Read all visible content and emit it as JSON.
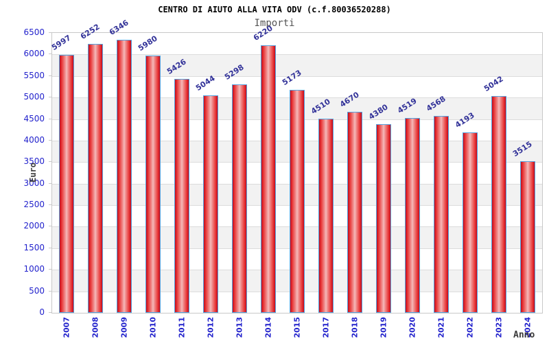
{
  "chart_data": {
    "type": "bar",
    "title": "CENTRO DI AIUTO ALLA VITA ODV (c.f.80036520288)",
    "subtitle": "Importi",
    "xlabel": "Anno",
    "ylabel": "Euro",
    "ylim": [
      0,
      6500
    ],
    "ytick_step": 500,
    "grid": "horizontal banded",
    "legend_position": "none",
    "categories": [
      "2007",
      "2008",
      "2009",
      "2010",
      "2011",
      "2012",
      "2013",
      "2014",
      "2015",
      "2017",
      "2018",
      "2019",
      "2020",
      "2021",
      "2022",
      "2023",
      "2024"
    ],
    "values": [
      5997,
      6252,
      6346,
      5980,
      5426,
      5044,
      5298,
      6220,
      5173,
      4510,
      4670,
      4380,
      4519,
      4568,
      4193,
      5042,
      3515
    ],
    "colors": {
      "bar_fill_edge": "#c40a1a",
      "bar_fill_center": "#f7bcbc",
      "bar_outline": "#54a3e0",
      "axis_tick_label": "#2222cc",
      "value_label": "#333399",
      "band_alt": "#f2f2f2",
      "gridline": "#dcdcdc",
      "plot_border": "#c8c8c8",
      "title": "#000000",
      "subtitle": "#555555",
      "axis_title": "#3a3a3a"
    }
  }
}
